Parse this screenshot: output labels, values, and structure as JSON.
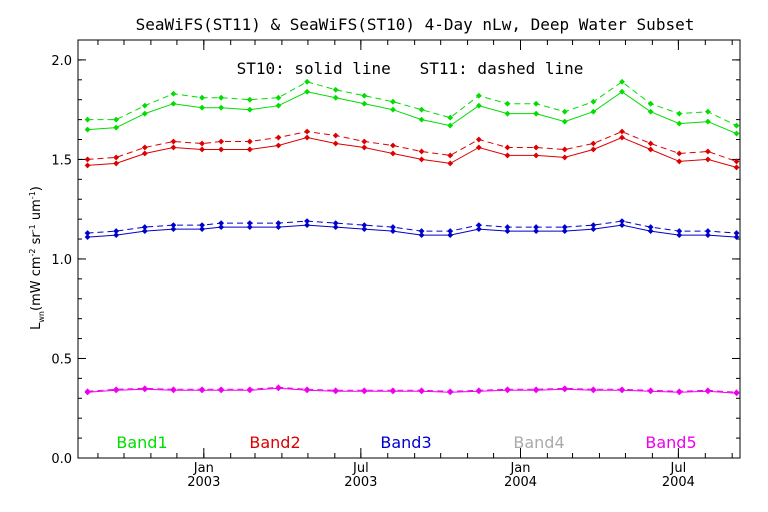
{
  "chart_data": {
    "type": "line",
    "title": "SeaWiFS(ST11) & SeaWiFS(ST10) 4-Day nLw, Deep Water Subset",
    "annotation": "ST10: solid line   ST11: dashed line",
    "ylabel_main": "L",
    "ylabel_sub": "wn",
    "ylabel_units": "(mW cm",
    "ylabel_exp1": "-2",
    "ylabel_mid": " sr",
    "ylabel_exp2": "-1",
    "ylabel_tail": " um",
    "ylabel_exp3": "-1",
    "ylabel_close": ")",
    "ylim": [
      0.0,
      2.1
    ],
    "yticks": [
      {
        "value": 0.0,
        "label": "0.0"
      },
      {
        "value": 0.5,
        "label": "0.5"
      },
      {
        "value": 1.0,
        "label": "1.0"
      },
      {
        "value": 1.5,
        "label": "1.5"
      },
      {
        "value": 2.0,
        "label": "2.0"
      }
    ],
    "xlim": [
      "2002-08-09",
      "2004-09-10"
    ],
    "xticks": [
      {
        "date": "2003-01-01",
        "month": "Jan",
        "year": "2003"
      },
      {
        "date": "2003-07-01",
        "month": "Jul",
        "year": "2003"
      },
      {
        "date": "2004-01-01",
        "month": "Jan",
        "year": "2004"
      },
      {
        "date": "2004-07-01",
        "month": "Jul",
        "year": "2004"
      }
    ],
    "x": [
      "2002-08-20",
      "2002-09-22",
      "2002-10-25",
      "2002-11-27",
      "2002-12-30",
      "2003-01-21",
      "2003-02-23",
      "2003-03-28",
      "2003-04-30",
      "2003-06-02",
      "2003-07-05",
      "2003-08-07",
      "2003-09-09",
      "2003-10-12",
      "2003-11-14",
      "2003-12-17",
      "2004-01-19",
      "2004-02-21",
      "2004-03-25",
      "2004-04-27",
      "2004-05-30",
      "2004-07-02",
      "2004-08-04",
      "2004-09-06"
    ],
    "legend": [
      {
        "label": "Band1",
        "color": "#00dd00"
      },
      {
        "label": "Band2",
        "color": "#dd0000"
      },
      {
        "label": "Band3",
        "color": "#0000cc"
      },
      {
        "label": "Band4",
        "color": "#aaaaaa"
      },
      {
        "label": "Band5",
        "color": "#ee00ee"
      }
    ],
    "series": [
      {
        "band": "Band1",
        "sensor": "ST10",
        "style": "solid",
        "color": "#00dd00",
        "values": [
          1.65,
          1.66,
          1.73,
          1.78,
          1.76,
          1.76,
          1.75,
          1.77,
          1.84,
          1.81,
          1.78,
          1.75,
          1.7,
          1.67,
          1.77,
          1.73,
          1.73,
          1.69,
          1.74,
          1.84,
          1.74,
          1.68,
          1.69,
          1.63
        ]
      },
      {
        "band": "Band1",
        "sensor": "ST11",
        "style": "dashed",
        "color": "#00dd00",
        "values": [
          1.7,
          1.7,
          1.77,
          1.83,
          1.81,
          1.81,
          1.8,
          1.81,
          1.89,
          1.85,
          1.82,
          1.79,
          1.75,
          1.71,
          1.82,
          1.78,
          1.78,
          1.74,
          1.79,
          1.89,
          1.78,
          1.73,
          1.74,
          1.67
        ]
      },
      {
        "band": "Band2",
        "sensor": "ST10",
        "style": "solid",
        "color": "#dd0000",
        "values": [
          1.47,
          1.48,
          1.53,
          1.56,
          1.55,
          1.55,
          1.55,
          1.57,
          1.61,
          1.58,
          1.56,
          1.53,
          1.5,
          1.48,
          1.56,
          1.52,
          1.52,
          1.51,
          1.55,
          1.61,
          1.55,
          1.49,
          1.5,
          1.46
        ]
      },
      {
        "band": "Band2",
        "sensor": "ST11",
        "style": "dashed",
        "color": "#dd0000",
        "values": [
          1.5,
          1.51,
          1.56,
          1.59,
          1.58,
          1.59,
          1.59,
          1.61,
          1.64,
          1.62,
          1.59,
          1.57,
          1.54,
          1.52,
          1.6,
          1.56,
          1.56,
          1.55,
          1.58,
          1.64,
          1.58,
          1.53,
          1.54,
          1.49
        ]
      },
      {
        "band": "Band3",
        "sensor": "ST10",
        "style": "solid",
        "color": "#0000cc",
        "values": [
          1.11,
          1.12,
          1.14,
          1.15,
          1.15,
          1.16,
          1.16,
          1.16,
          1.17,
          1.16,
          1.15,
          1.14,
          1.12,
          1.12,
          1.15,
          1.14,
          1.14,
          1.14,
          1.15,
          1.17,
          1.14,
          1.12,
          1.12,
          1.11
        ]
      },
      {
        "band": "Band3",
        "sensor": "ST11",
        "style": "dashed",
        "color": "#0000cc",
        "values": [
          1.13,
          1.14,
          1.16,
          1.17,
          1.17,
          1.18,
          1.18,
          1.18,
          1.19,
          1.18,
          1.17,
          1.16,
          1.14,
          1.14,
          1.17,
          1.16,
          1.16,
          1.16,
          1.17,
          1.19,
          1.16,
          1.14,
          1.14,
          1.13
        ]
      },
      {
        "band": "Band5",
        "sensor": "ST10",
        "style": "solid",
        "color": "#ee00ee",
        "values": [
          0.33,
          0.34,
          0.345,
          0.34,
          0.34,
          0.34,
          0.34,
          0.35,
          0.34,
          0.335,
          0.335,
          0.335,
          0.335,
          0.33,
          0.335,
          0.34,
          0.34,
          0.345,
          0.34,
          0.34,
          0.335,
          0.33,
          0.335,
          0.325
        ]
      },
      {
        "band": "Band5",
        "sensor": "ST11",
        "style": "dashed",
        "color": "#ee00ee",
        "values": [
          0.335,
          0.345,
          0.35,
          0.345,
          0.345,
          0.345,
          0.345,
          0.355,
          0.345,
          0.34,
          0.34,
          0.34,
          0.34,
          0.335,
          0.34,
          0.345,
          0.345,
          0.35,
          0.345,
          0.345,
          0.34,
          0.335,
          0.34,
          0.33
        ]
      }
    ]
  }
}
